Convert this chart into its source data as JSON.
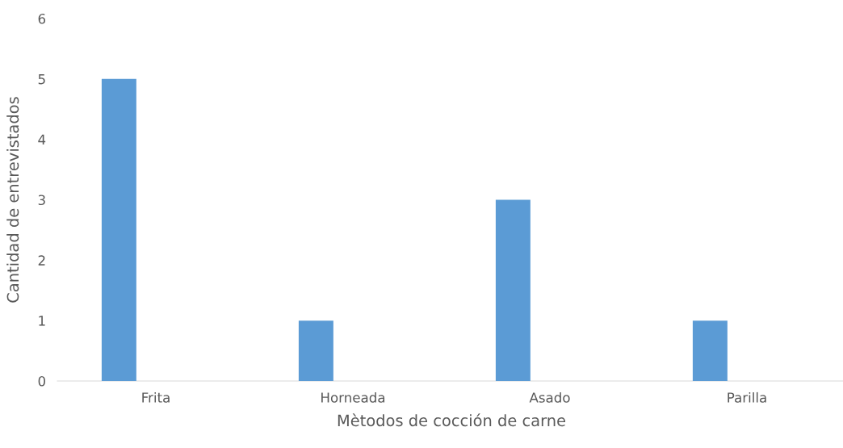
{
  "chart_data": {
    "type": "bar",
    "xlabel": "Mètodos de cocción de carne",
    "ylabel": "Cantidad de entrevistados",
    "categories": [
      "Frita",
      "Horneada",
      "Asado",
      "Parilla"
    ],
    "values": [
      5,
      1,
      3,
      1
    ],
    "color": "#5b9bd5",
    "ylim": [
      0,
      6
    ],
    "yticks": [
      0,
      1,
      2,
      3,
      4,
      5,
      6
    ],
    "grid": false
  }
}
